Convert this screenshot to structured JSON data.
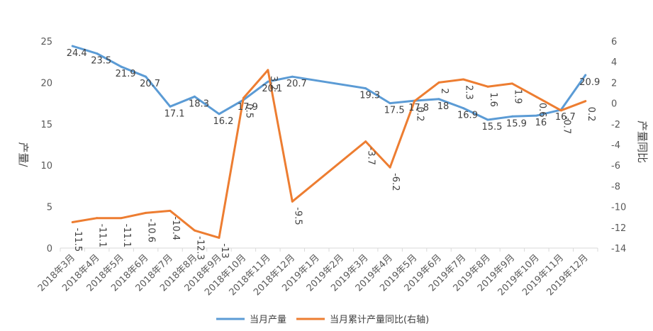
{
  "chart_data": {
    "type": "line",
    "categories": [
      "2018年3月",
      "2018年4月",
      "2018年5月",
      "2018年6月",
      "2018年7月",
      "2018年8月",
      "2018年9月",
      "2018年10月",
      "2018年11月",
      "2018年12月",
      "2019年1月",
      "2019年2月",
      "2019年3月",
      "2019年4月",
      "2019年5月",
      "2019年6月",
      "2019年7月",
      "2019年8月",
      "2019年9月",
      "2019年10月",
      "2019年11月",
      "2019年12月"
    ],
    "series": [
      {
        "name": "当月产量",
        "axis": "left",
        "color": "#5B9BD5",
        "values": [
          24.4,
          23.5,
          21.9,
          20.7,
          17.1,
          18.3,
          16.2,
          17.9,
          20.1,
          20.7,
          null,
          null,
          19.3,
          17.5,
          17.8,
          18,
          16.9,
          15.5,
          15.9,
          16,
          16.7,
          20.9
        ],
        "labels": [
          "24.4",
          "23.5",
          "21.9",
          "20.7",
          "17.1",
          "18.3",
          "16.2",
          "17.9",
          "20.1",
          "20.7",
          "",
          "",
          "19.3",
          "17.5",
          "17.8",
          "18",
          "16.9",
          "15.5",
          "15.9",
          "16",
          "16.7",
          "20.9"
        ]
      },
      {
        "name": "当月累计产量同比(右轴)",
        "axis": "right",
        "color": "#ED7D31",
        "values": [
          -11.5,
          -11.1,
          -11.1,
          -10.6,
          -10.4,
          -12.3,
          -13,
          0.5,
          3.2,
          -9.5,
          null,
          null,
          -3.7,
          -6.2,
          0.2,
          2,
          2.3,
          1.6,
          1.9,
          0.6,
          -0.7,
          0.2
        ],
        "labels": [
          "-11.5",
          "-11.1",
          "-11.1",
          "-10.6",
          "-10.4",
          "-12.3",
          "-13",
          "0.5",
          "3.2",
          "-9.5",
          "",
          "",
          "-3.7",
          "-6.2",
          "0.2",
          "2",
          "2.3",
          "1.6",
          "1.9",
          "0.6",
          "-0.7",
          "0.2"
        ]
      }
    ],
    "y_left": {
      "label": "产量/",
      "min": 0,
      "max": 25,
      "ticks": [
        "0",
        "5",
        "10",
        "15",
        "20",
        "25"
      ]
    },
    "y_right": {
      "label": "产量同比",
      "min": -14,
      "max": 6,
      "ticks": [
        "-14",
        "-12",
        "-10",
        "-8",
        "-6",
        "-4",
        "-2",
        "0",
        "2",
        "4",
        "6"
      ]
    },
    "grid": false,
    "legend_position": "bottom"
  }
}
